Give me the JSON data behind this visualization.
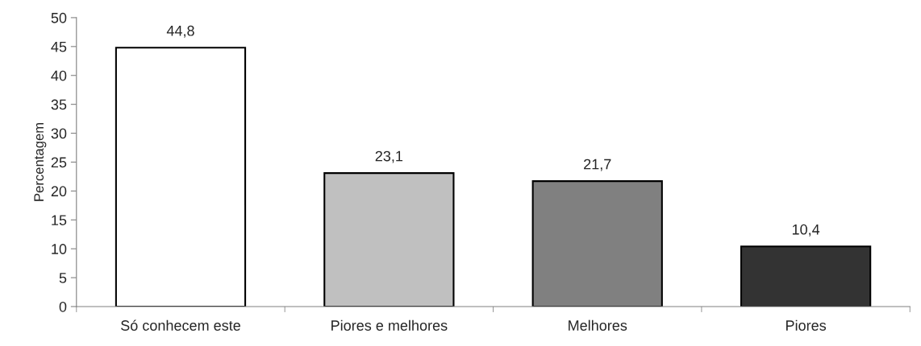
{
  "chart_data": {
    "type": "bar",
    "ylabel": "Percentagem",
    "categories": [
      "Só conhecem este",
      "Piores e melhores",
      "Melhores",
      "Piores"
    ],
    "values": [
      44.8,
      23.1,
      21.7,
      10.4
    ],
    "colors": [
      "#ffffff",
      "#c0c0c0",
      "#808080",
      "#333333"
    ],
    "value_labels": [
      "44,8",
      "23,1",
      "21,7",
      "10,4"
    ],
    "ylim": [
      0,
      50
    ],
    "yticks": [
      0,
      5,
      10,
      15,
      20,
      25,
      30,
      35,
      40,
      45,
      50
    ],
    "grid": false,
    "legend": false
  }
}
